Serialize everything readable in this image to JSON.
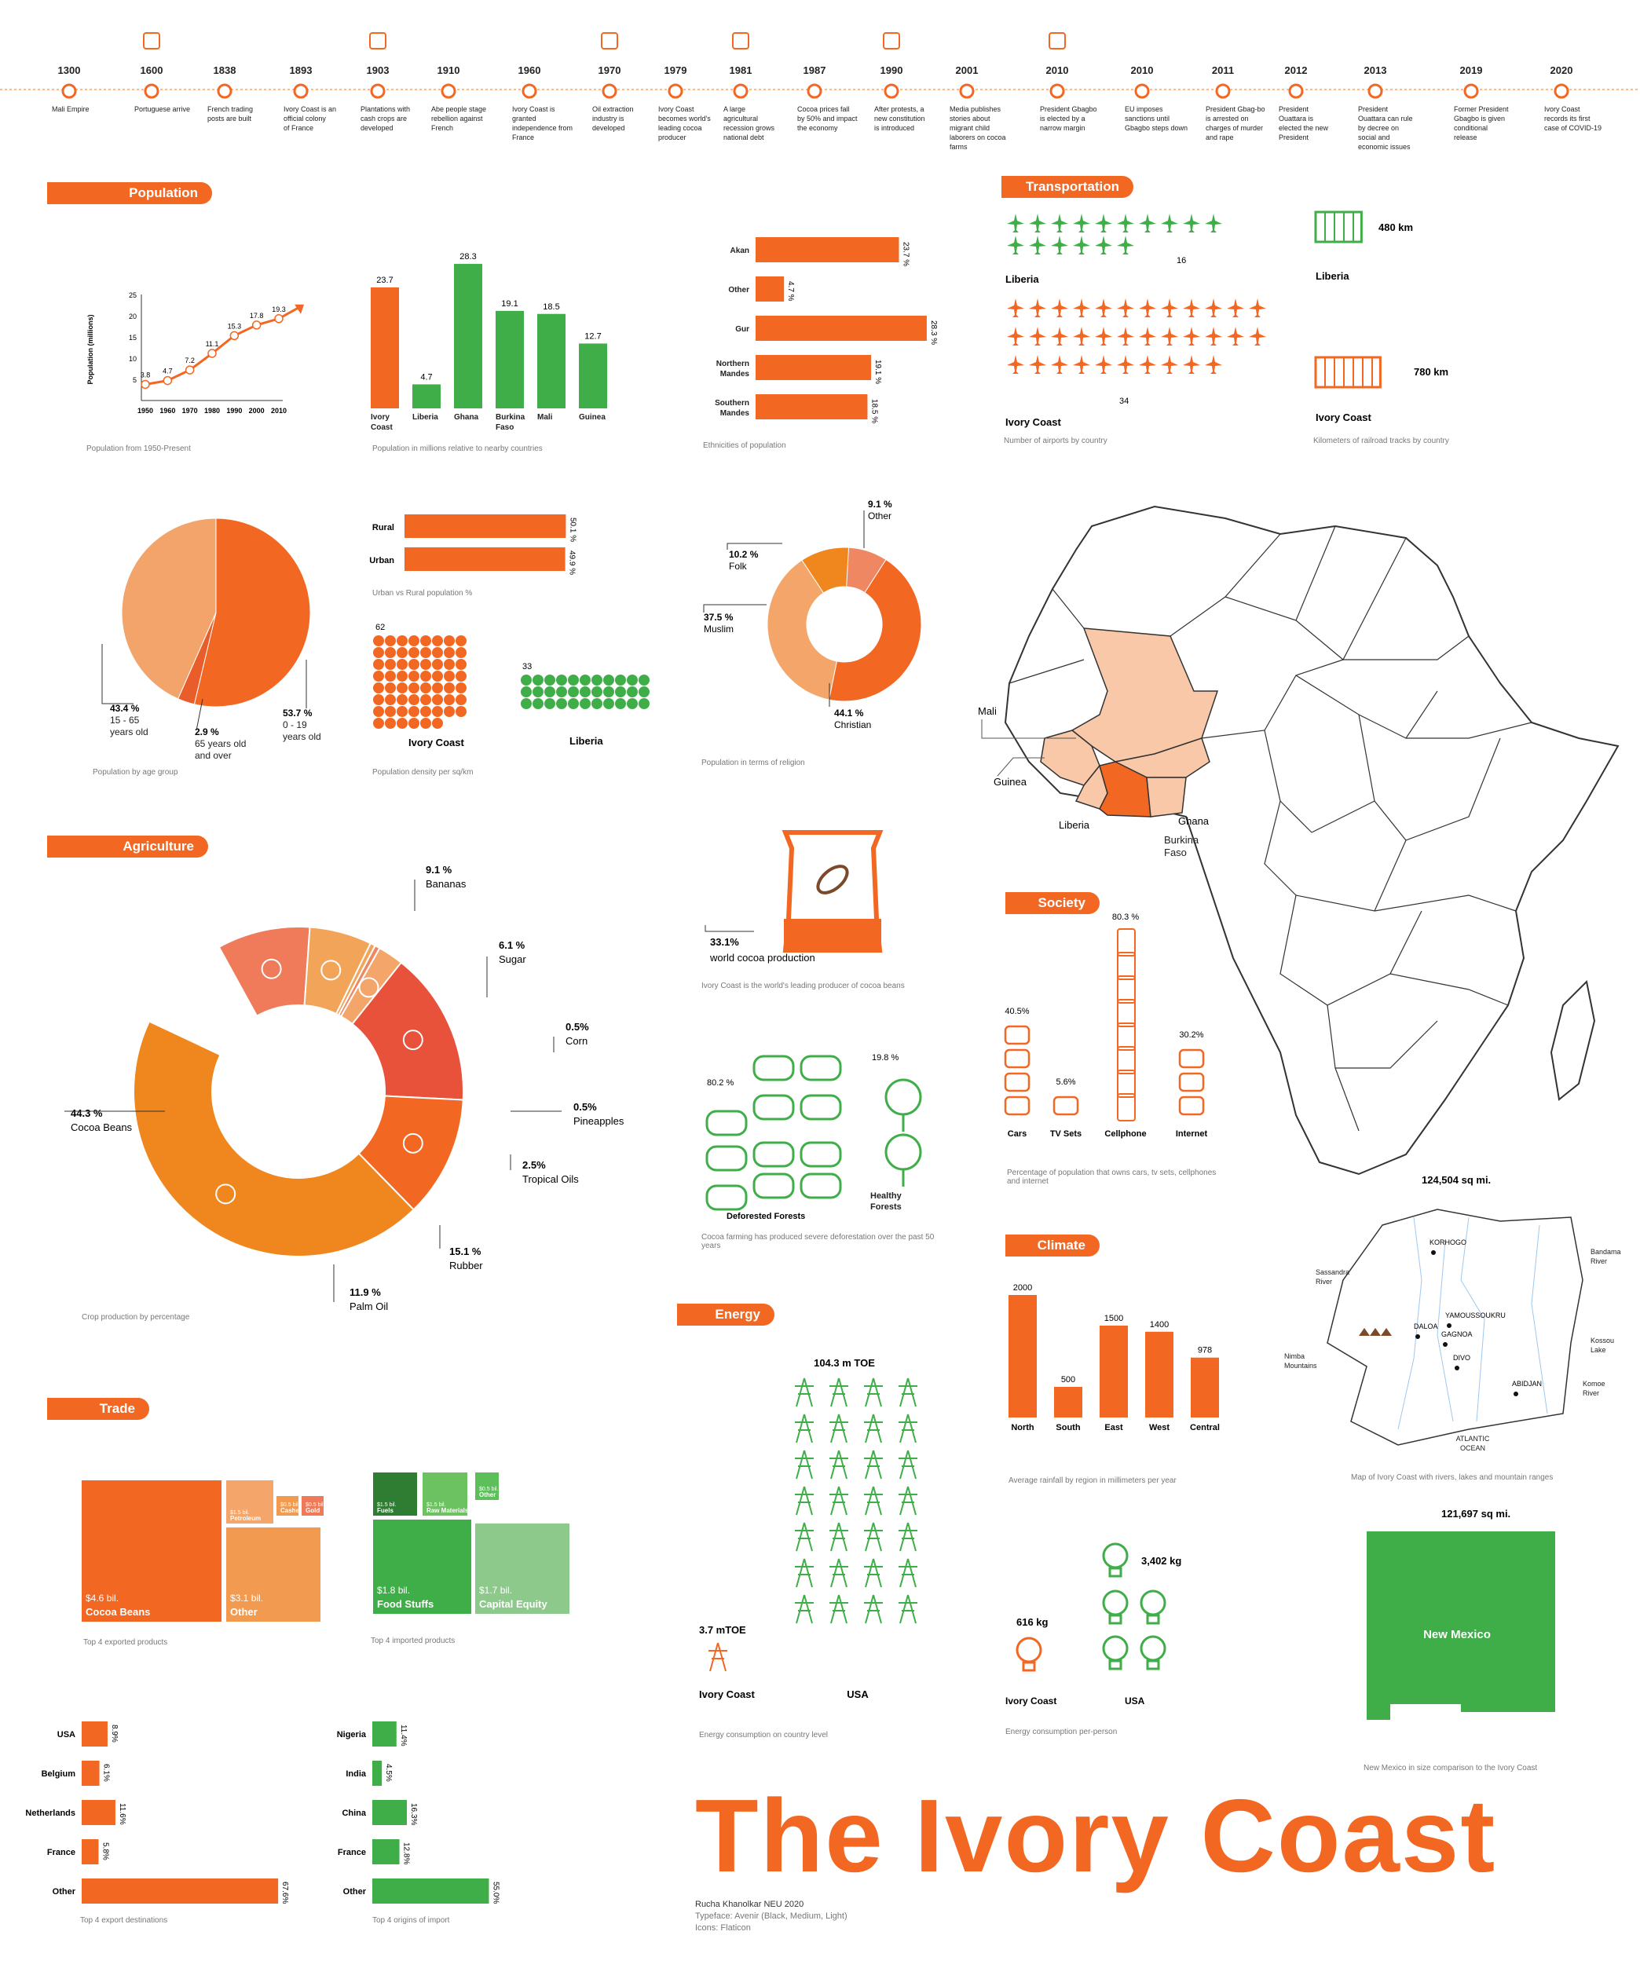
{
  "colors": {
    "orange": "#f26722",
    "green": "#3fae49",
    "light_orange": "#f4a66a",
    "light_green": "#8dc98a",
    "dark_green": "#2e7d32"
  },
  "timeline": {
    "events": [
      {
        "year": "1300",
        "text": "Mali Empire"
      },
      {
        "year": "1600",
        "text": "Portuguese arrive"
      },
      {
        "year": "1838",
        "text": "French trading posts are built"
      },
      {
        "year": "1893",
        "text": "Ivory Coast is an official colony of France"
      },
      {
        "year": "1903",
        "text": "Plantations with cash crops are developed"
      },
      {
        "year": "1910",
        "text": "Abe people stage rebellion against French"
      },
      {
        "year": "1960",
        "text": "Ivory Coast is granted independence from France"
      },
      {
        "year": "1970",
        "text": "Oil extraction industry is developed"
      },
      {
        "year": "1979",
        "text": "Ivory Coast becomes world's leading cocoa producer"
      },
      {
        "year": "1981",
        "text": "A large agricultural recession grows national debt"
      },
      {
        "year": "1987",
        "text": "Cocoa prices fall by 50% and impact the economy"
      },
      {
        "year": "1990",
        "text": "After protests, a new constitution is introduced"
      },
      {
        "year": "2001",
        "text": "Media publishes stories about migrant child laborers on cocoa farms"
      },
      {
        "year": "2010",
        "text": "President Gbagbo is elected by a narrow margin"
      },
      {
        "year": "2010",
        "text": "EU imposes sanctions until Gbagbo steps down"
      },
      {
        "year": "2011",
        "text": "President Gbag-bo is arrested on charges of murder and rape"
      },
      {
        "year": "2012",
        "text": "President Ouattara is elected the new President"
      },
      {
        "year": "2013",
        "text": "President Ouattara can rule by decree on social and economic issues"
      },
      {
        "year": "2019",
        "text": "Former President Gbagbo is given conditional release"
      },
      {
        "year": "2020",
        "text": "Ivory Coast records its first case of COVID-19"
      }
    ]
  },
  "sections": {
    "population": "Population",
    "transportation": "Transportation",
    "agriculture": "Agriculture",
    "society": "Society",
    "trade": "Trade",
    "energy": "Energy",
    "climate": "Climate"
  },
  "captions": {
    "pop_line": "Population from 1950-Present",
    "pop_compare": "Population in millions relative to nearby countries",
    "ethnic": "Ethnicities of population",
    "airports": "Number of airports by country",
    "rail": "Kilometers of railroad tracks by country",
    "age": "Population by age group",
    "urban": "Urban vs Rural population %",
    "density": "Population density per sq/km",
    "religion": "Population in terms of religion",
    "crops": "Crop production by percentage",
    "cocoa": "Ivory Coast is the world's leading producer of cocoa beans",
    "forest": "Cocoa farming has produced severe deforestation over the past 50 years",
    "society": "Percentage of population that owns cars, tv sets, cellphones and internet",
    "exports": "Top 4 exported products",
    "imports": "Top 4 imported products",
    "energy": "Energy consumption on country level",
    "energy_pp": "Energy consumption per-person",
    "rain": "Average rainfall by region in millimeters per year",
    "ic_map": "Map of Ivory Coast with rivers, lakes and mountain ranges",
    "nm": "New Mexico in size comparison to the Ivory Coast",
    "export_dest": "Top 4 export destinations",
    "import_origin": "Top 4 origins of import"
  },
  "chart_data": [
    {
      "id": "pop_line",
      "type": "line",
      "x": [
        1950,
        1960,
        1970,
        1980,
        1990,
        2000,
        2010
      ],
      "values": [
        3.8,
        4.7,
        7.2,
        11.1,
        15.3,
        17.8,
        19.3
      ],
      "ylabel": "Population (millions)",
      "ylim": [
        0,
        25
      ],
      "yticks": [
        5,
        10,
        15,
        20,
        25
      ]
    },
    {
      "id": "pop_compare",
      "type": "bar",
      "categories": [
        "Ivory Coast",
        "Liberia",
        "Ghana",
        "Burkina Faso",
        "Mali",
        "Guinea"
      ],
      "cat_lines": [
        [
          "Ivory",
          "Coast"
        ],
        [
          "Liberia"
        ],
        [
          "Ghana"
        ],
        [
          "Burkina",
          "Faso"
        ],
        [
          "Mali"
        ],
        [
          "Guinea"
        ]
      ],
      "values": [
        23.7,
        4.7,
        28.3,
        19.1,
        18.5,
        12.7
      ],
      "labels": [
        "23.7",
        "4.7",
        "28.3",
        "19.1",
        "18.5",
        "12.7"
      ]
    },
    {
      "id": "ethnic",
      "type": "bar",
      "categories": [
        "Akan",
        "Other",
        "Gur",
        "Northern Mandes",
        "Southern Mandes"
      ],
      "cat_lines": [
        [
          "Akan"
        ],
        [
          "Other"
        ],
        [
          "Gur"
        ],
        [
          "Northern",
          "Mandes"
        ],
        [
          "Southern",
          "Mandes"
        ]
      ],
      "values": [
        23.7,
        4.7,
        28.3,
        19.1,
        18.5
      ],
      "labels": [
        "23.7 %",
        "4.7 %",
        "28.3 %",
        "19.1 %",
        "18.5 %"
      ]
    },
    {
      "id": "airports",
      "type": "bar",
      "categories": [
        "Liberia",
        "Ivory Coast"
      ],
      "values": [
        16,
        34
      ]
    },
    {
      "id": "rail",
      "type": "bar",
      "categories": [
        "Liberia",
        "Ivory Coast"
      ],
      "values": [
        480,
        780
      ],
      "labels": [
        "480 km",
        "780 km"
      ]
    },
    {
      "id": "age",
      "type": "pie",
      "categories": [
        "0 - 19 years old",
        "65 years old and over",
        "15 - 65 years old"
      ],
      "values": [
        53.7,
        2.9,
        43.4
      ],
      "labels": [
        "53.7 %",
        "2.9 %",
        "43.4 %"
      ],
      "label_lines": [
        [
          "0 - 19",
          "years old"
        ],
        [
          "65 years old",
          "and over"
        ],
        [
          "15 - 65",
          "years old"
        ]
      ]
    },
    {
      "id": "urban",
      "type": "bar",
      "categories": [
        "Rural",
        "Urban"
      ],
      "values": [
        50.1,
        49.9
      ],
      "labels": [
        "50.1 %",
        "49.9 %"
      ]
    },
    {
      "id": "density",
      "type": "bar",
      "categories": [
        "Ivory Coast",
        "Liberia"
      ],
      "values": [
        62,
        33
      ]
    },
    {
      "id": "religion",
      "type": "pie",
      "categories": [
        "Other",
        "Christian",
        "Muslim",
        "Folk"
      ],
      "values": [
        9.1,
        44.1,
        37.5,
        10.2
      ],
      "labels": [
        "9.1 %",
        "44.1 %",
        "37.5 %",
        "10.2 %"
      ]
    },
    {
      "id": "crops",
      "type": "pie",
      "categories": [
        "Bananas",
        "Sugar",
        "Corn",
        "Pineapples",
        "Tropical Oils",
        "Rubber",
        "Palm Oil",
        "Cocoa Beans"
      ],
      "values": [
        9.1,
        6.1,
        0.5,
        0.5,
        2.5,
        15.1,
        11.9,
        44.3
      ],
      "labels": [
        "9.1 %",
        "6.1 %",
        "0.5%",
        "0.5%",
        "2.5%",
        "15.1 %",
        "11.9 %",
        "44.3 %"
      ]
    },
    {
      "id": "cocoa",
      "type": "bar",
      "categories": [
        "world cocoa production"
      ],
      "values": [
        33.1
      ],
      "labels": [
        "33.1%"
      ]
    },
    {
      "id": "forest",
      "type": "bar",
      "categories": [
        "Deforested Forests",
        "Healthy Forests"
      ],
      "values": [
        80.2,
        19.8
      ],
      "labels": [
        "80.2 %",
        "19.8 %"
      ]
    },
    {
      "id": "society",
      "type": "bar",
      "categories": [
        "Cars",
        "TV Sets",
        "Cellphone",
        "Internet"
      ],
      "values": [
        40.5,
        5.6,
        80.3,
        30.2
      ],
      "labels": [
        "40.5%",
        "5.6%",
        "80.3 %",
        "30.2%"
      ]
    },
    {
      "id": "exports",
      "type": "heatmap",
      "categories": [
        "Cocoa Beans",
        "Other",
        "Petroleum",
        "Cashews",
        "Gold"
      ],
      "values": [
        4.6,
        3.1,
        1.5,
        0.5,
        0.5
      ],
      "labels": [
        "$4.6 bil.",
        "$3.1 bil.",
        "$1.5 bil.",
        "$0.5 bil.",
        "$0.5 bil."
      ]
    },
    {
      "id": "imports",
      "type": "heatmap",
      "categories": [
        "Food Stuffs",
        "Capital Equity",
        "Fuels",
        "Raw Materials",
        "Other"
      ],
      "values": [
        1.8,
        1.7,
        1.5,
        1.5,
        0.5
      ],
      "labels": [
        "$1.8 bil.",
        "$1.7 bil.",
        "$1.5 bil.",
        "$1.5 bil.",
        "$0.5 bil."
      ]
    },
    {
      "id": "export_dest",
      "type": "bar",
      "categories": [
        "USA",
        "Belgium",
        "Netherlands",
        "France",
        "Other"
      ],
      "values": [
        8.9,
        6.1,
        11.6,
        5.8,
        67.6
      ],
      "labels": [
        "8.9%",
        "6.1%",
        "11.6%",
        "5.8%",
        "67.6%"
      ]
    },
    {
      "id": "import_origin",
      "type": "bar",
      "categories": [
        "Nigeria",
        "India",
        "China",
        "France",
        "Other"
      ],
      "values": [
        11.4,
        4.5,
        16.3,
        12.8,
        55.0
      ],
      "labels": [
        "11.4%",
        "4.5%",
        "16.3%",
        "12.8%",
        "55.0%"
      ]
    },
    {
      "id": "energy",
      "type": "bar",
      "categories": [
        "Ivory Coast",
        "USA"
      ],
      "values": [
        3.7,
        104.3
      ],
      "labels": [
        "3.7 mTOE",
        "104.3 m TOE"
      ]
    },
    {
      "id": "energy_pp",
      "type": "bar",
      "categories": [
        "Ivory Coast",
        "USA"
      ],
      "values": [
        616,
        3402
      ],
      "labels": [
        "616 kg",
        "3,402 kg"
      ]
    },
    {
      "id": "rain",
      "type": "bar",
      "categories": [
        "North",
        "South",
        "East",
        "West",
        "Central"
      ],
      "values": [
        2000,
        500,
        1500,
        1400,
        978
      ],
      "labels": [
        "2000",
        "500",
        "1500",
        "1400",
        "978"
      ]
    }
  ],
  "map": {
    "countries": [
      "Mali",
      "Guinea",
      "Liberia",
      "Ghana",
      "Burkina Faso"
    ],
    "label_lines": {
      "burkina": [
        "Burkina",
        "Faso"
      ]
    }
  },
  "ic_map": {
    "area": "124,504 sq mi.",
    "cities": [
      "KORHOGO",
      "YAMOUSSOUKRU",
      "DALOA",
      "GAGNOA",
      "DIVO",
      "ABIDJAN"
    ],
    "features": {
      "bandama": [
        "Bandama",
        "River"
      ],
      "sassandra": [
        "Sassandra",
        "River"
      ],
      "kossou": [
        "Kossou",
        "Lake"
      ],
      "nimba": [
        "Nimba",
        "Mountains"
      ],
      "komoe": [
        "Komoe",
        "River"
      ],
      "atlantic": [
        "ATLANTIC",
        "OCEAN"
      ]
    }
  },
  "nm": {
    "area": "121,697 sq mi.",
    "name": "New Mexico"
  },
  "title": "The Ivory Coast",
  "credit": {
    "line1": "Rucha Khanolkar NEU 2020",
    "line2": "Typeface: Avenir (Black, Medium, Light)",
    "line3": "Icons: Flaticon"
  }
}
